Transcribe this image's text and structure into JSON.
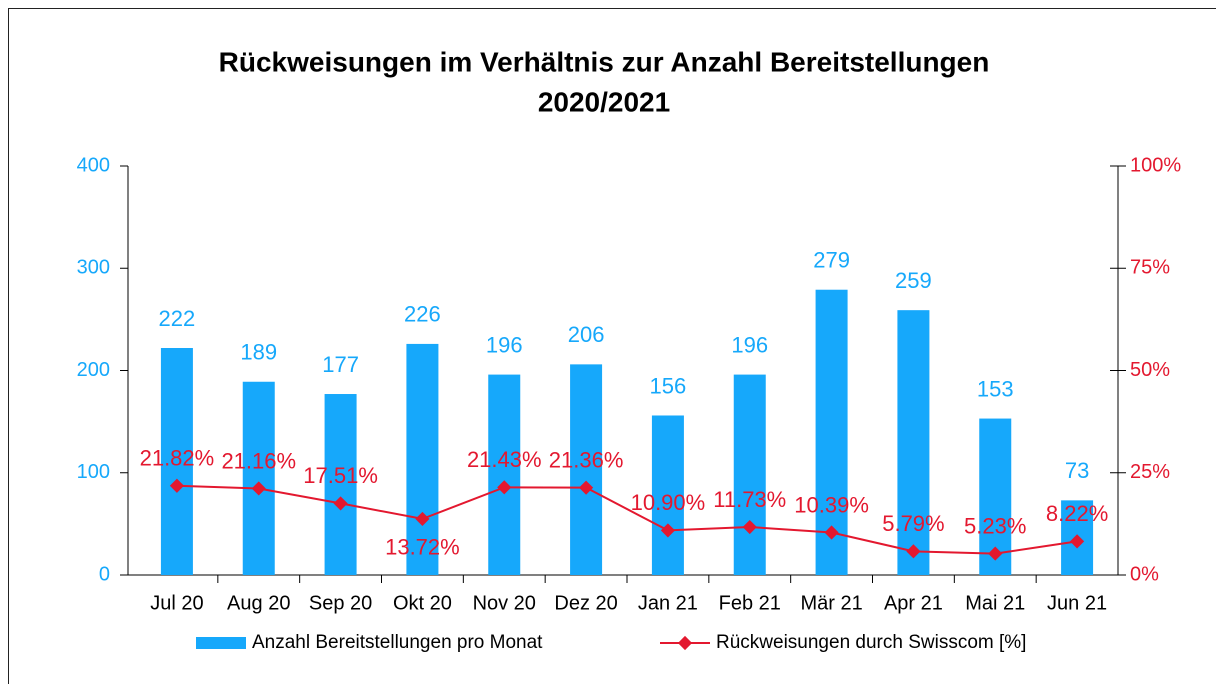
{
  "chart_data": {
    "type": "bar",
    "title": "Rückweisungen im Verhältnis zur Anzahl Bereitstellungen",
    "subtitle": "2020/2021",
    "categories": [
      "Jul 20",
      "Aug 20",
      "Sep 20",
      "Okt 20",
      "Nov 20",
      "Dez 20",
      "Jan 21",
      "Feb 21",
      "Mär 21",
      "Apr 21",
      "Mai 21",
      "Jun 21"
    ],
    "series": [
      {
        "name": "Anzahl Bereitstellungen pro Monat",
        "type": "bar",
        "color": "#16a8fb",
        "values": [
          222,
          189,
          177,
          226,
          196,
          206,
          156,
          196,
          279,
          259,
          153,
          73
        ]
      },
      {
        "name": "Rückweisungen durch Swisscom [%]",
        "type": "line",
        "axis": "y2",
        "color": "#e3182f",
        "values": [
          21.82,
          21.16,
          17.51,
          13.72,
          21.43,
          21.36,
          10.9,
          11.73,
          10.39,
          5.79,
          5.23,
          8.22
        ],
        "value_labels": [
          "21.82%",
          "21.16%",
          "17.51%",
          "13.72%",
          "21.43%",
          "21.36%",
          "10.90%",
          "11.73%",
          "10.39%",
          "5.79%",
          "5.23%",
          "8.22%"
        ]
      }
    ],
    "ylim": [
      0,
      400
    ],
    "yticks": [
      0,
      100,
      200,
      300,
      400
    ],
    "y2lim": [
      0,
      100
    ],
    "y2ticks": [
      {
        "value": 0,
        "label": "0%"
      },
      {
        "value": 25,
        "label": "25%"
      },
      {
        "value": 50,
        "label": "50%"
      },
      {
        "value": 75,
        "label": "75%"
      },
      {
        "value": 100,
        "label": "100%"
      }
    ],
    "legend": "bottom"
  }
}
